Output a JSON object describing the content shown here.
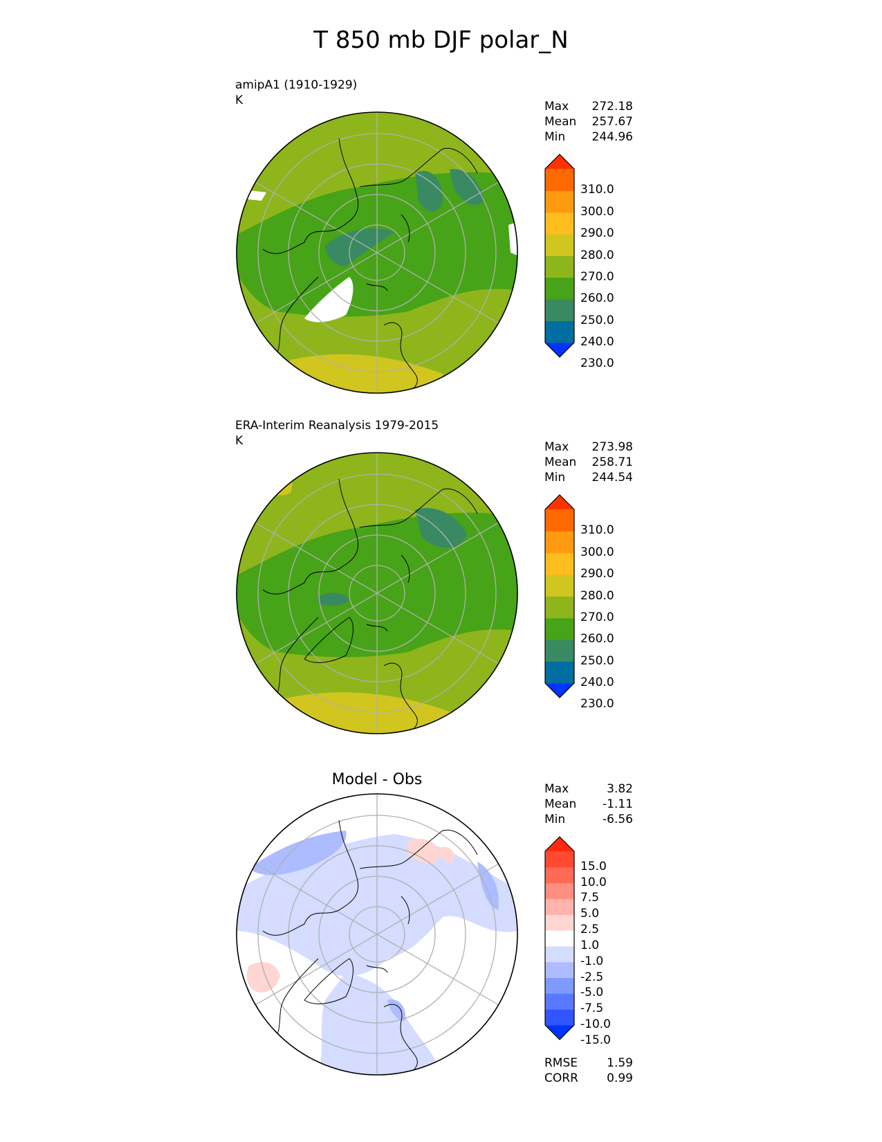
{
  "title": "T 850 mb DJF polar_N",
  "panels": [
    {
      "id": "model",
      "label_line1": "amipA1 (1910-1929)",
      "label_line2": "K",
      "stats": [
        {
          "name": "Max",
          "value": "272.18"
        },
        {
          "name": "Mean",
          "value": "257.67"
        },
        {
          "name": "Min",
          "value": "244.96"
        }
      ],
      "colorbar": {
        "tick_labels": [
          "310.0",
          "300.0",
          "290.0",
          "280.0",
          "270.0",
          "260.0",
          "250.0",
          "240.0",
          "230.0"
        ],
        "colors": [
          "#0033ff",
          "#006ea0",
          "#398a63",
          "#47a317",
          "#8fb51c",
          "#d0c61f",
          "#ffbd1e",
          "#ff9a10",
          "#ff6a00",
          "#ff3300"
        ]
      }
    },
    {
      "id": "obs",
      "label_line1": "ERA-Interim Reanalysis 1979-2015",
      "label_line2": "K",
      "stats": [
        {
          "name": "Max",
          "value": "273.98"
        },
        {
          "name": "Mean",
          "value": "258.71"
        },
        {
          "name": "Min",
          "value": "244.54"
        }
      ],
      "colorbar": {
        "tick_labels": [
          "310.0",
          "300.0",
          "290.0",
          "280.0",
          "270.0",
          "260.0",
          "250.0",
          "240.0",
          "230.0"
        ],
        "colors": [
          "#0033ff",
          "#006ea0",
          "#398a63",
          "#47a317",
          "#8fb51c",
          "#d0c61f",
          "#ffbd1e",
          "#ff9a10",
          "#ff6a00",
          "#ff3300"
        ]
      }
    },
    {
      "id": "diff",
      "title": "Model - Obs",
      "stats": [
        {
          "name": "Max",
          "value": "3.82"
        },
        {
          "name": "Mean",
          "value": "-1.11"
        },
        {
          "name": "Min",
          "value": "-6.56"
        }
      ],
      "colorbar": {
        "tick_labels": [
          "15.0",
          "10.0",
          "7.5",
          "5.0",
          "2.5",
          "1.0",
          "-1.0",
          "-2.5",
          "-5.0",
          "-7.5",
          "-10.0",
          "-15.0"
        ],
        "colors": [
          "#0034ff",
          "#2f55ff",
          "#5a78ff",
          "#8099ff",
          "#adbcff",
          "#d4dcff",
          "#ffffff",
          "#ffd6d2",
          "#ffb3aa",
          "#ff8f80",
          "#ff6a55",
          "#ff4a30",
          "#ff2a10"
        ]
      },
      "footer": [
        {
          "name": "RMSE",
          "value": "1.59"
        },
        {
          "name": "CORR",
          "value": "0.99"
        }
      ]
    }
  ]
}
